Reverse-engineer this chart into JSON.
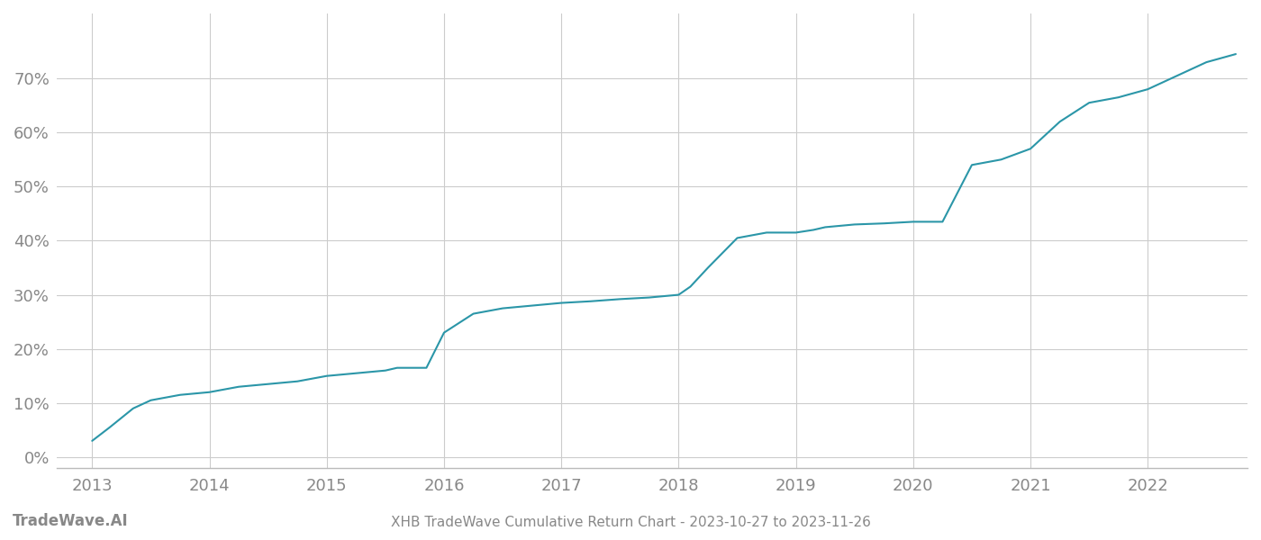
{
  "title": "XHB TradeWave Cumulative Return Chart - 2023-10-27 to 2023-11-26",
  "watermark": "TradeWave.AI",
  "line_color": "#2b96a8",
  "background_color": "#ffffff",
  "grid_color": "#cccccc",
  "x_values": [
    2013.0,
    2013.15,
    2013.35,
    2013.5,
    2013.75,
    2014.0,
    2014.25,
    2014.5,
    2014.75,
    2015.0,
    2015.25,
    2015.5,
    2015.6,
    2015.75,
    2015.85,
    2016.0,
    2016.25,
    2016.5,
    2016.75,
    2017.0,
    2017.25,
    2017.5,
    2017.75,
    2017.9,
    2018.0,
    2018.1,
    2018.25,
    2018.5,
    2018.75,
    2019.0,
    2019.15,
    2019.25,
    2019.5,
    2019.75,
    2020.0,
    2020.15,
    2020.25,
    2020.5,
    2020.75,
    2021.0,
    2021.25,
    2021.5,
    2021.75,
    2022.0,
    2022.25,
    2022.5,
    2022.75
  ],
  "y_values": [
    3.0,
    5.5,
    9.0,
    10.5,
    11.5,
    12.0,
    13.0,
    13.5,
    14.0,
    15.0,
    15.5,
    16.0,
    16.5,
    16.5,
    16.5,
    23.0,
    26.5,
    27.5,
    28.0,
    28.5,
    28.8,
    29.2,
    29.5,
    29.8,
    30.0,
    31.5,
    35.0,
    40.5,
    41.5,
    41.5,
    42.0,
    42.5,
    43.0,
    43.2,
    43.5,
    43.5,
    43.5,
    54.0,
    55.0,
    57.0,
    62.0,
    65.5,
    66.5,
    68.0,
    70.5,
    73.0,
    74.5
  ],
  "ylim": [
    -2,
    82
  ],
  "xlim": [
    2012.7,
    2022.85
  ],
  "yticks": [
    0,
    10,
    20,
    30,
    40,
    50,
    60,
    70
  ],
  "xticks": [
    2013,
    2014,
    2015,
    2016,
    2017,
    2018,
    2019,
    2020,
    2021,
    2022
  ],
  "tick_color": "#888888",
  "tick_label_fontsize": 13,
  "title_fontsize": 11,
  "watermark_fontsize": 12,
  "line_width": 1.5
}
